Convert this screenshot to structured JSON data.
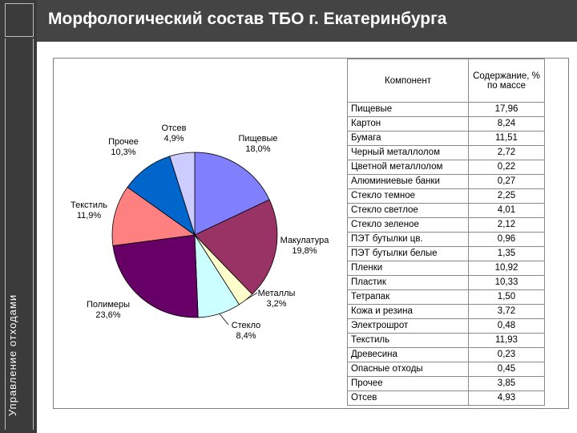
{
  "sidebar": {
    "label": "Управление отходами"
  },
  "header": {
    "title": "Морфологический состав ТБО г. Екатеринбурга"
  },
  "chart_data": [
    {
      "type": "pie",
      "slices": [
        {
          "name": "Пищевые",
          "value": 18.0,
          "label_value": "18,0%",
          "color": "#8080ff"
        },
        {
          "name": "Макулатура",
          "value": 19.8,
          "label_value": "19,8%",
          "color": "#993366"
        },
        {
          "name": "Металлы",
          "value": 3.2,
          "label_value": "3,2%",
          "color": "#ffffcc"
        },
        {
          "name": "Стекло",
          "value": 8.4,
          "label_value": "8,4%",
          "color": "#ccffff"
        },
        {
          "name": "Полимеры",
          "value": 23.6,
          "label_value": "23,6%",
          "color": "#660066"
        },
        {
          "name": "Текстиль",
          "value": 11.9,
          "label_value": "11,9%",
          "color": "#ff8080"
        },
        {
          "name": "Прочее",
          "value": 10.3,
          "label_value": "10,3%",
          "color": "#0066cc"
        },
        {
          "name": "Отсев",
          "value": 4.9,
          "label_value": "4,9%",
          "color": "#ccccff"
        }
      ]
    },
    {
      "type": "table",
      "columns": [
        "Компонент",
        "Содержание, % по массе"
      ],
      "rows": [
        [
          "Пищевые",
          "17,96"
        ],
        [
          "Картон",
          "8,24"
        ],
        [
          "Бумага",
          "11,51"
        ],
        [
          "Черный металлолом",
          "2,72"
        ],
        [
          "Цветной металлолом",
          "0,22"
        ],
        [
          "Алюминиевые банки",
          "0,27"
        ],
        [
          "Стекло темное",
          "2,25"
        ],
        [
          "Стекло светлое",
          "4,01"
        ],
        [
          "Стекло зеленое",
          "2,12"
        ],
        [
          "ПЭТ бутылки цв.",
          "0,96"
        ],
        [
          "ПЭТ бутылки белые",
          "1,35"
        ],
        [
          "Пленки",
          "10,92"
        ],
        [
          "Пластик",
          "10,33"
        ],
        [
          "Тетрапак",
          "1,50"
        ],
        [
          "Кожа и резина",
          "3,72"
        ],
        [
          "Электрошрот",
          "0,48"
        ],
        [
          "Текстиль",
          "11,93"
        ],
        [
          "Древесина",
          "0,23"
        ],
        [
          "Опасные отходы",
          "0,45"
        ],
        [
          "Прочее",
          "3,85"
        ],
        [
          "Отсев",
          "4,93"
        ]
      ]
    }
  ]
}
